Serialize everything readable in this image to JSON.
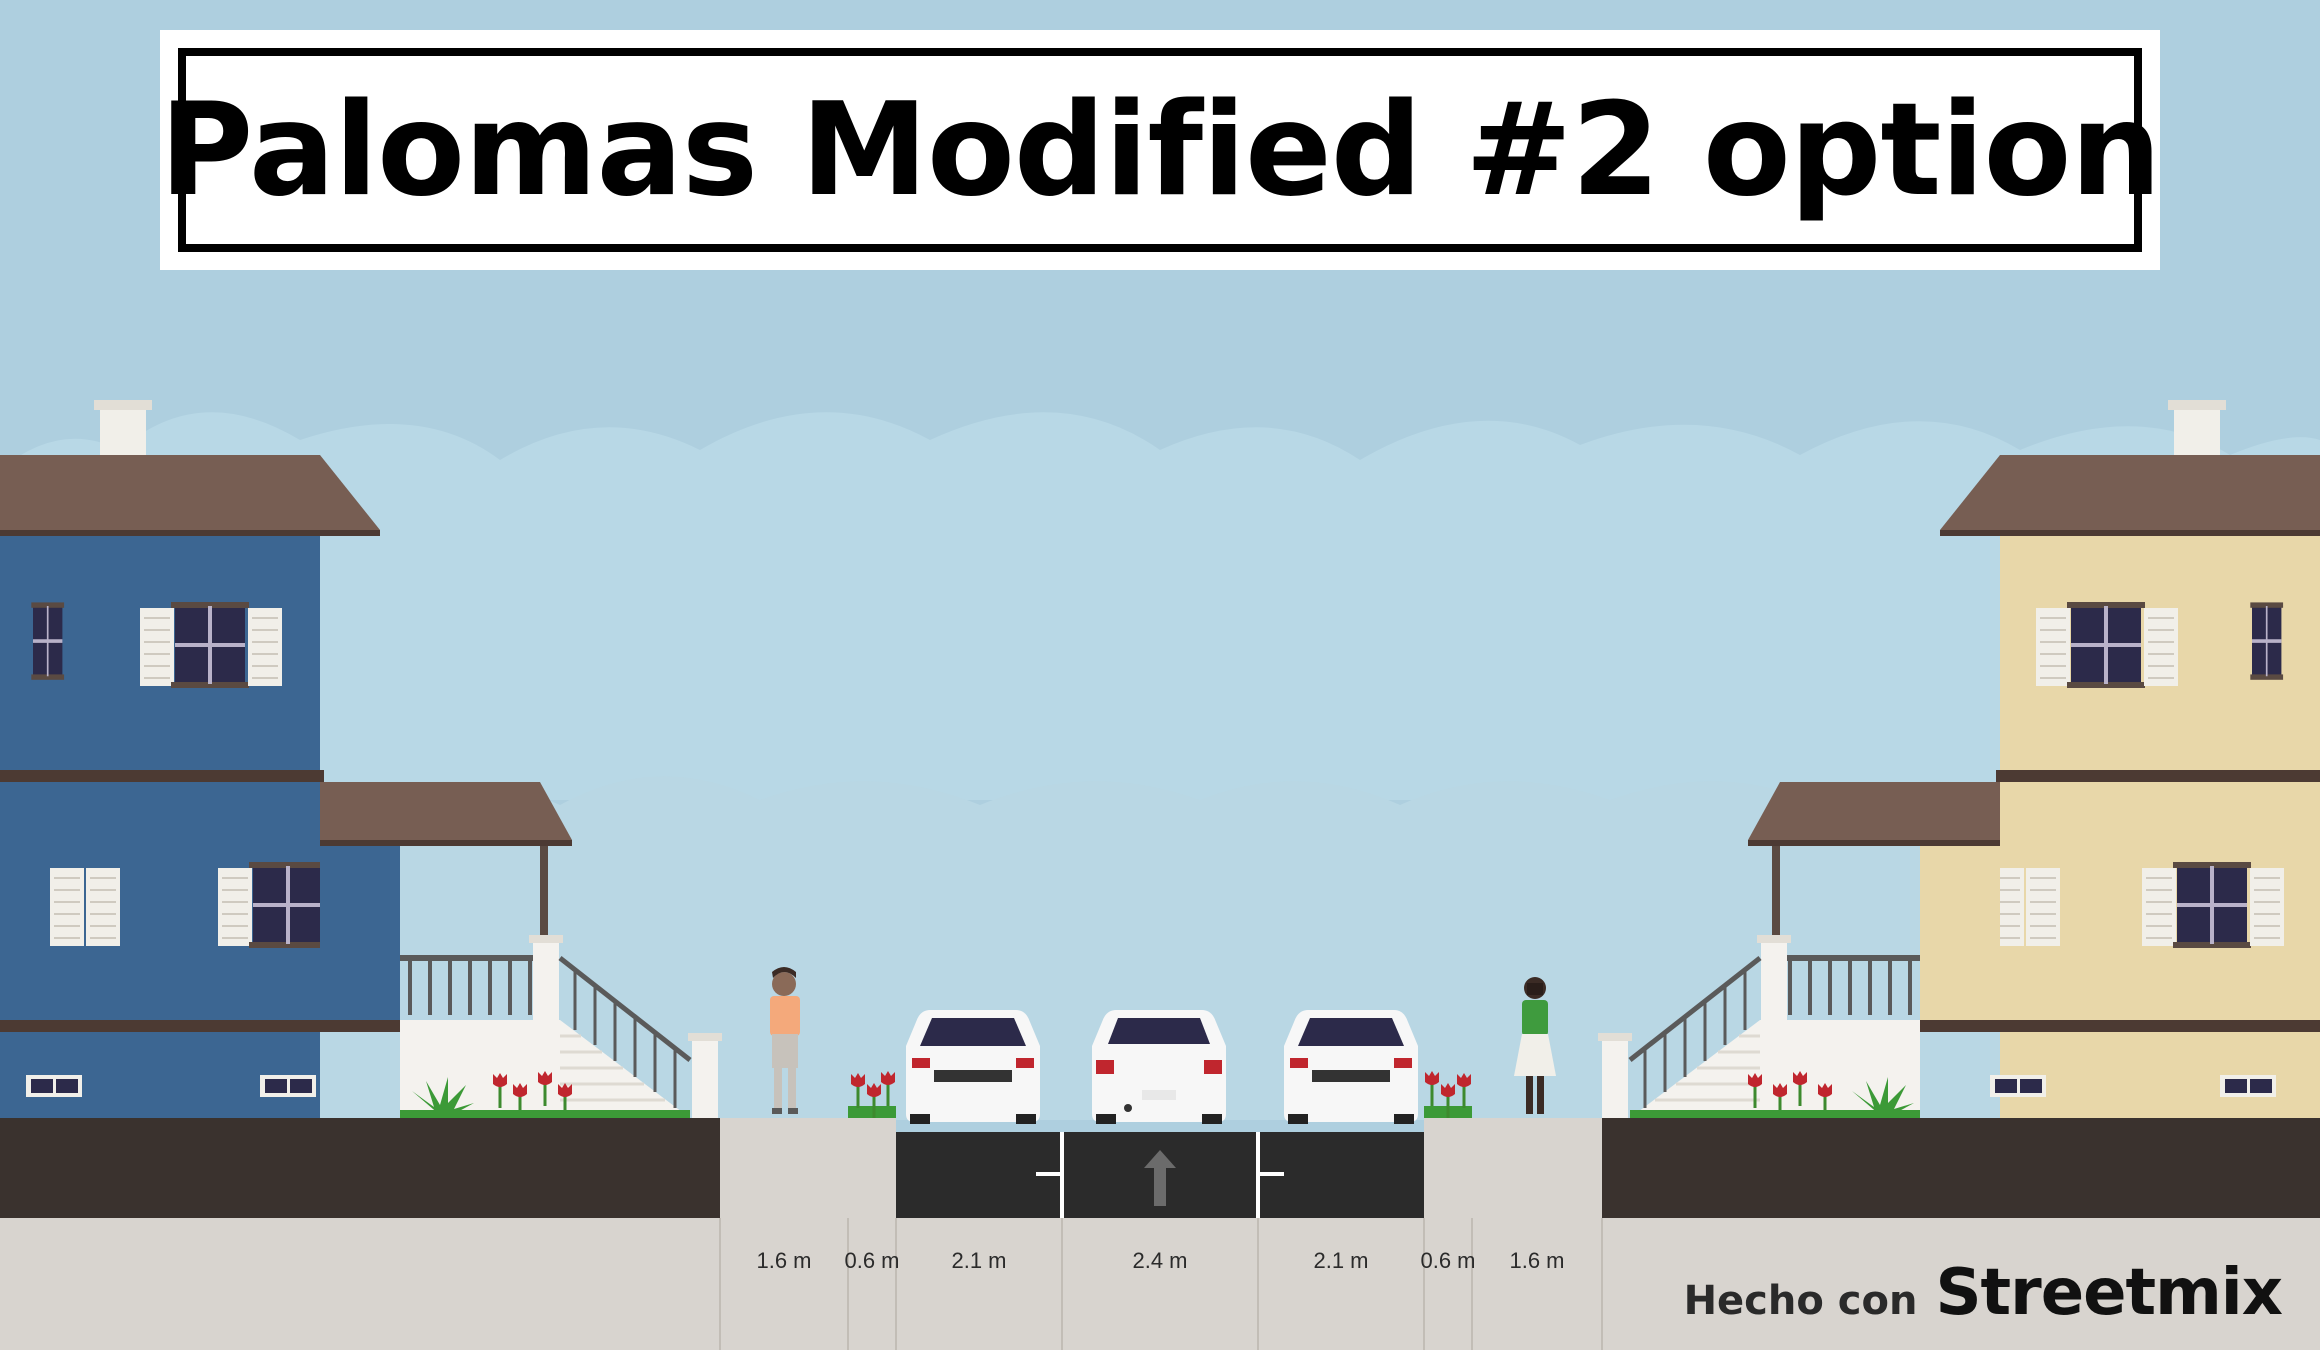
{
  "title": "Palomas Modified #2 option",
  "segments": [
    {
      "name": "sidewalk-left",
      "width_label": "1.6 m"
    },
    {
      "name": "sidewalk-buffer-left",
      "width_label": "0.6 m"
    },
    {
      "name": "parking-lane-left",
      "width_label": "2.1 m"
    },
    {
      "name": "drive-lane",
      "width_label": "2.4 m"
    },
    {
      "name": "parking-lane-right",
      "width_label": "2.1 m"
    },
    {
      "name": "sidewalk-buffer-right",
      "width_label": "0.6 m"
    },
    {
      "name": "sidewalk-right",
      "width_label": "1.6 m"
    }
  ],
  "credit": {
    "prefix": "Hecho con",
    "brand": "Streetmix"
  },
  "colors": {
    "sky": "#aecfdf",
    "house_left": "#3c6692",
    "house_right": "#e8d7a9",
    "roof": "#775e53",
    "asphalt": "#2b2b2b",
    "ground": "#d8d4cf",
    "curb": "#3a322e"
  },
  "icons": [
    "house-left-icon",
    "house-right-icon",
    "pedestrian-icon",
    "car-front-icon",
    "car-rear-icon",
    "lane-arrow-icon",
    "flower-icon",
    "shrub-icon"
  ]
}
